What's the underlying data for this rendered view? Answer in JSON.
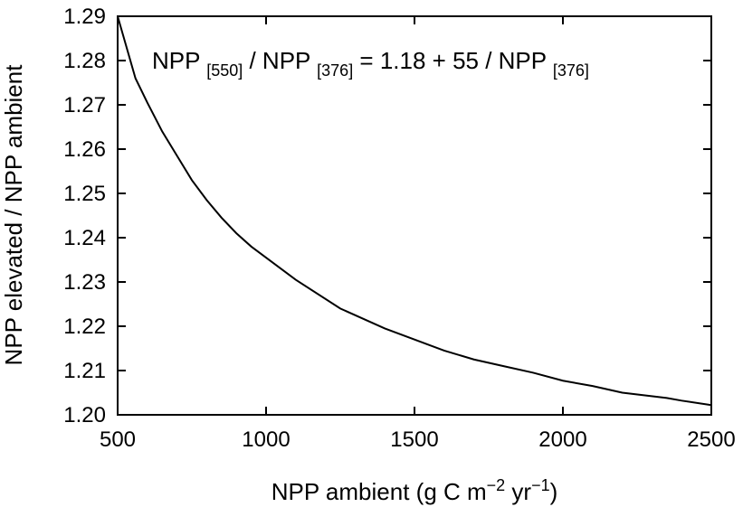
{
  "chart_data": {
    "type": "line",
    "xlabel": {
      "prefix": "NPP ambient (g C m",
      "sup1": "−2",
      "middle": " yr",
      "sup2": "−1",
      "suffix": ")"
    },
    "ylabel": "NPP elevated / NPP ambient",
    "xlim": [
      500,
      2500
    ],
    "ylim": [
      1.2,
      1.29
    ],
    "xticks": [
      "500",
      "1000",
      "1500",
      "2000",
      "2500"
    ],
    "yticks": [
      "1.20",
      "1.21",
      "1.22",
      "1.23",
      "1.24",
      "1.25",
      "1.26",
      "1.27",
      "1.28",
      "1.29"
    ],
    "grid": false,
    "annotation": {
      "p1": "NPP ",
      "s1": "[550]",
      "p2": " / NPP ",
      "s2": "[376]",
      "p3": " = 1.18 + 55 / NPP ",
      "s3": "[376]"
    },
    "series": [
      {
        "color": "#000000",
        "x": [
          500,
          560,
          600,
          650,
          700,
          750,
          800,
          850,
          900,
          950,
          1000,
          1100,
          1250,
          1400,
          1500,
          1600,
          1700,
          1800,
          1900,
          2000,
          2100,
          2200,
          2350,
          2400,
          2500
        ],
        "y": [
          1.29,
          1.276,
          1.2705,
          1.264,
          1.2585,
          1.253,
          1.2485,
          1.2445,
          1.241,
          1.238,
          1.2355,
          1.2305,
          1.224,
          1.2195,
          1.217,
          1.2145,
          1.2125,
          1.211,
          1.2095,
          1.2077,
          1.2065,
          1.205,
          1.2038,
          1.2032,
          1.2022
        ]
      }
    ]
  }
}
